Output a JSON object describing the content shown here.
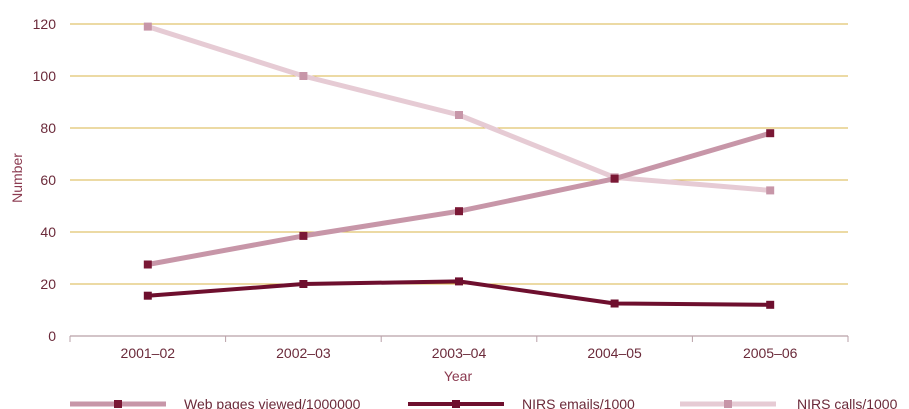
{
  "chart_data": {
    "type": "line",
    "categories": [
      "2001–02",
      "2002–03",
      "2003–04",
      "2004–05",
      "2005–06"
    ],
    "xlabel": "Year",
    "ylabel": "Number",
    "ylim": [
      0,
      120
    ],
    "yticks": [
      0,
      20,
      40,
      60,
      80,
      100,
      120
    ],
    "grid": true,
    "legend_position": "bottom",
    "series": [
      {
        "name": "Web pages viewed/1000000",
        "values": [
          27.5,
          38.5,
          48,
          60.5,
          78
        ],
        "line_color": "#c796a8",
        "marker_color": "#7a1835",
        "line_width": 5
      },
      {
        "name": "NIRS emails/1000",
        "values": [
          15.5,
          20,
          21,
          12.5,
          12
        ],
        "line_color": "#6e0f2e",
        "marker_color": "#6e0f2e",
        "line_width": 4
      },
      {
        "name": "NIRS calls/1000",
        "values": [
          119,
          100,
          85,
          61,
          56
        ],
        "line_color": "#e6cbd4",
        "marker_color": "#c796a8",
        "line_width": 5
      }
    ],
    "colors": {
      "gridline": "#d9b64a",
      "axis": "#b9a0a8",
      "text": "#6b2a3a"
    }
  }
}
